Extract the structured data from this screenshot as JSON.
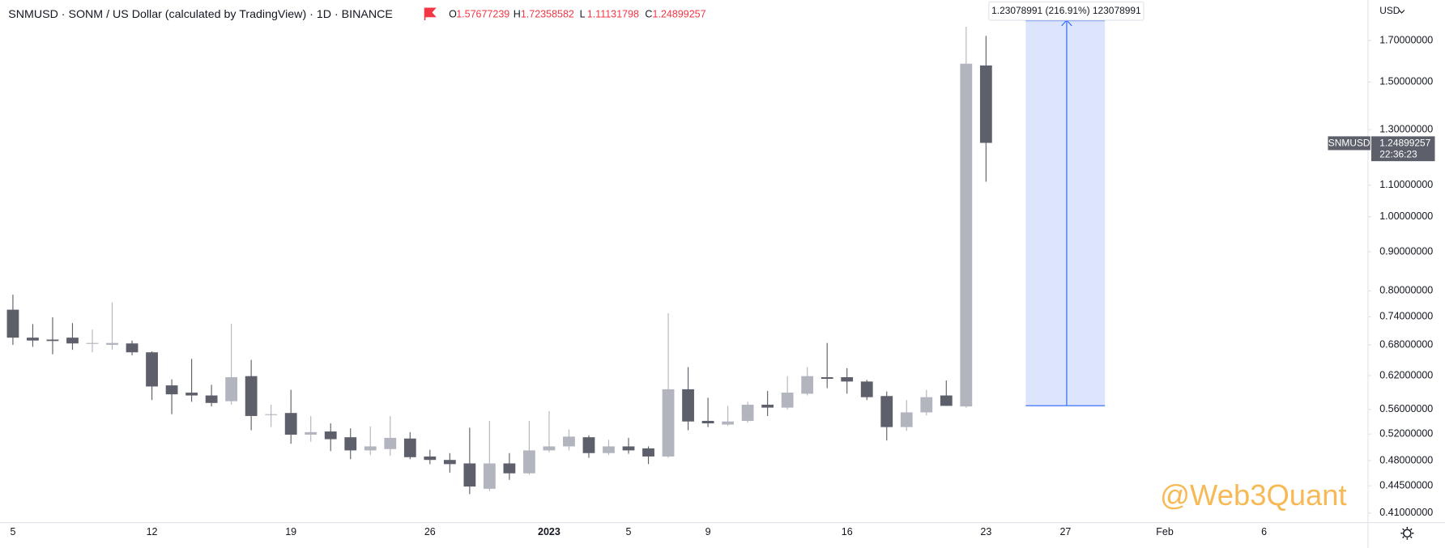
{
  "chart_data": {
    "type": "candlestick",
    "title": "SNMUSD · SONM / US Dollar (calculated by TradingView) · 1D · BINANCE",
    "header_labels": [
      "O",
      "H",
      "L",
      "C"
    ],
    "currency": "USD",
    "symbol_tag": "SNMUSD",
    "countdown": "22:36:23",
    "measure_label": "1.23078991 (216.91%) 123078991",
    "watermark": "@Web3Quant",
    "log_scale": true,
    "grid": false,
    "up_color": "#b2b5be",
    "down_color": "#5d606b",
    "categories": [
      "5",
      null,
      null,
      null,
      null,
      null,
      null,
      "12",
      null,
      null,
      null,
      null,
      null,
      null,
      "19",
      null,
      null,
      null,
      null,
      null,
      null,
      "26",
      null,
      null,
      null,
      null,
      null,
      "2023",
      null,
      null,
      null,
      "5",
      null,
      null,
      null,
      "9",
      null,
      null,
      null,
      null,
      null,
      null,
      "16",
      null,
      null,
      null,
      null,
      null,
      null,
      "23",
      null,
      null,
      null,
      "27",
      null,
      null,
      null,
      null,
      "Feb",
      null,
      null,
      null,
      null,
      "6"
    ],
    "open": [
      0.756,
      0.695,
      0.691,
      0.695,
      0.683,
      0.68,
      0.683,
      0.665,
      0.602,
      0.589,
      0.584,
      0.574,
      0.619,
      0.551,
      0.554,
      0.519,
      0.524,
      0.515,
      0.495,
      0.497,
      0.513,
      0.486,
      0.481,
      0.476,
      0.441,
      0.476,
      0.462,
      0.495,
      0.501,
      0.515,
      0.491,
      0.501,
      0.498,
      0.486,
      0.595,
      0.541,
      0.535,
      0.541,
      0.568,
      0.563,
      0.587,
      0.617,
      0.617,
      0.609,
      0.583,
      0.531,
      0.555,
      0.584,
      0.565,
      1.57677239,
      null,
      null,
      null,
      null,
      null,
      null,
      null,
      null,
      null,
      null,
      null,
      null,
      null,
      null
    ],
    "high": [
      0.791,
      0.724,
      0.739,
      0.726,
      0.712,
      0.773,
      0.689,
      0.667,
      0.613,
      0.652,
      0.603,
      0.725,
      0.65,
      0.568,
      0.594,
      0.549,
      0.537,
      0.529,
      0.532,
      0.549,
      0.523,
      0.496,
      0.491,
      0.53,
      0.541,
      0.491,
      0.541,
      0.557,
      0.527,
      0.518,
      0.511,
      0.514,
      0.501,
      0.748,
      0.636,
      0.58,
      0.566,
      0.573,
      0.592,
      0.619,
      0.636,
      0.684,
      0.634,
      0.612,
      0.591,
      0.576,
      0.594,
      0.611,
      1.772,
      1.72358582,
      null,
      null,
      null,
      null,
      null,
      null,
      null,
      null,
      null,
      null,
      null,
      null,
      null,
      null
    ],
    "low": [
      0.68,
      0.676,
      0.661,
      0.67,
      0.665,
      0.67,
      0.659,
      0.576,
      0.552,
      0.573,
      0.565,
      0.568,
      0.526,
      0.531,
      0.505,
      0.508,
      0.494,
      0.482,
      0.488,
      0.487,
      0.482,
      0.475,
      0.463,
      0.434,
      0.438,
      0.453,
      0.46,
      0.492,
      0.495,
      0.484,
      0.488,
      0.49,
      0.475,
      0.484,
      0.526,
      0.531,
      0.533,
      0.538,
      0.549,
      0.56,
      0.584,
      0.597,
      0.587,
      0.576,
      0.51,
      0.525,
      0.55,
      0.566,
      0.563,
      1.11131798,
      null,
      null,
      null,
      null,
      null,
      null,
      null,
      null,
      null,
      null,
      null,
      null,
      null,
      null
    ],
    "close": [
      0.695,
      0.689,
      0.688,
      0.683,
      0.684,
      0.684,
      0.665,
      0.6,
      0.586,
      0.584,
      0.571,
      0.617,
      0.549,
      0.552,
      0.519,
      0.523,
      0.512,
      0.495,
      0.501,
      0.514,
      0.485,
      0.481,
      0.475,
      0.444,
      0.476,
      0.462,
      0.495,
      0.501,
      0.516,
      0.491,
      0.501,
      0.495,
      0.486,
      0.595,
      0.54,
      0.537,
      0.54,
      0.568,
      0.563,
      0.589,
      0.619,
      0.614,
      0.609,
      0.581,
      0.531,
      0.555,
      0.581,
      0.566,
      1.585,
      1.24899257,
      null,
      null,
      null,
      null,
      null,
      null,
      null,
      null,
      null,
      null,
      null,
      null,
      null,
      null
    ],
    "ylim": [
      0.3988,
      1.92
    ],
    "yticks": [
      {
        "value": 0.41,
        "label": "0.41000000"
      },
      {
        "value": 0.445,
        "label": "0.44500000"
      },
      {
        "value": 0.48,
        "label": "0.48000000"
      },
      {
        "value": 0.52,
        "label": "0.52000000"
      },
      {
        "value": 0.56,
        "label": "0.56000000"
      },
      {
        "value": 0.62,
        "label": "0.62000000"
      },
      {
        "value": 0.68,
        "label": "0.68000000"
      },
      {
        "value": 0.74,
        "label": "0.74000000"
      },
      {
        "value": 0.8,
        "label": "0.80000000"
      },
      {
        "value": 0.9,
        "label": "0.90000000"
      },
      {
        "value": 1.0,
        "label": "1.00000000"
      },
      {
        "value": 1.1,
        "label": "1.10000000"
      },
      {
        "value": 1.3,
        "label": "1.30000000"
      },
      {
        "value": 1.5,
        "label": "1.50000000"
      },
      {
        "value": 1.7,
        "label": "1.70000000"
      }
    ]
  }
}
